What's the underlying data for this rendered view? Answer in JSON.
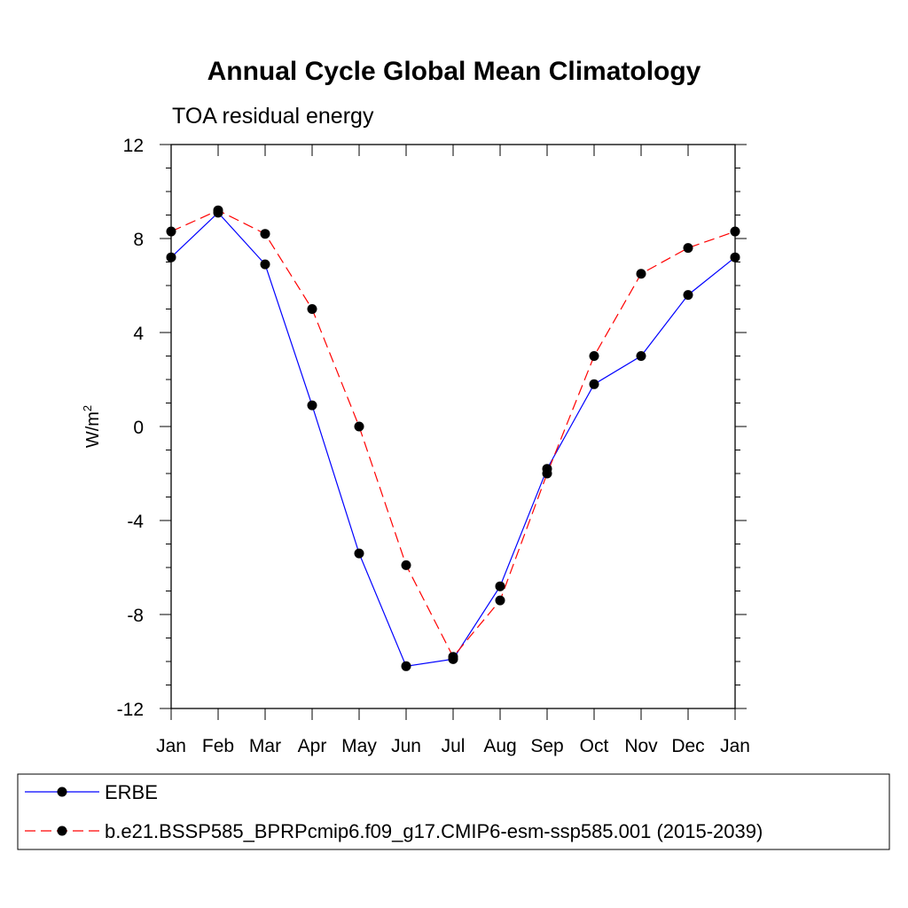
{
  "chart_data": {
    "type": "line",
    "title": "Annual Cycle Global Mean Climatology",
    "subtitle": "TOA residual energy",
    "ylabel_base": "W/m",
    "ylabel_sup": "2",
    "categories": [
      "Jan",
      "Feb",
      "Mar",
      "Apr",
      "May",
      "Jun",
      "Jul",
      "Aug",
      "Sep",
      "Oct",
      "Nov",
      "Dec",
      "Jan"
    ],
    "ylim": [
      -12,
      12
    ],
    "yticks": [
      12,
      8,
      4,
      0,
      -4,
      -8,
      -12
    ],
    "ytick_labels": [
      "12",
      "8",
      "4",
      "0",
      "-4",
      "-8",
      "-12"
    ],
    "grid": false,
    "legend_position": "bottom",
    "series": [
      {
        "name": "ERBE",
        "color": "#0000ff",
        "dash": "solid",
        "values": [
          7.2,
          9.1,
          6.9,
          0.9,
          -5.4,
          -10.2,
          -9.9,
          -6.8,
          -1.8,
          1.8,
          3.0,
          5.6,
          7.2
        ]
      },
      {
        "name": "b.e21.BSSP585_BPRPcmip6.f09_g17.CMIP6-esm-ssp585.001 (2015-2039)",
        "color": "#ff0000",
        "dash": "dashed",
        "values": [
          8.3,
          9.2,
          8.2,
          5.0,
          0.0,
          -5.9,
          -9.8,
          -7.4,
          -2.0,
          3.0,
          6.5,
          7.6,
          8.3
        ]
      }
    ]
  }
}
